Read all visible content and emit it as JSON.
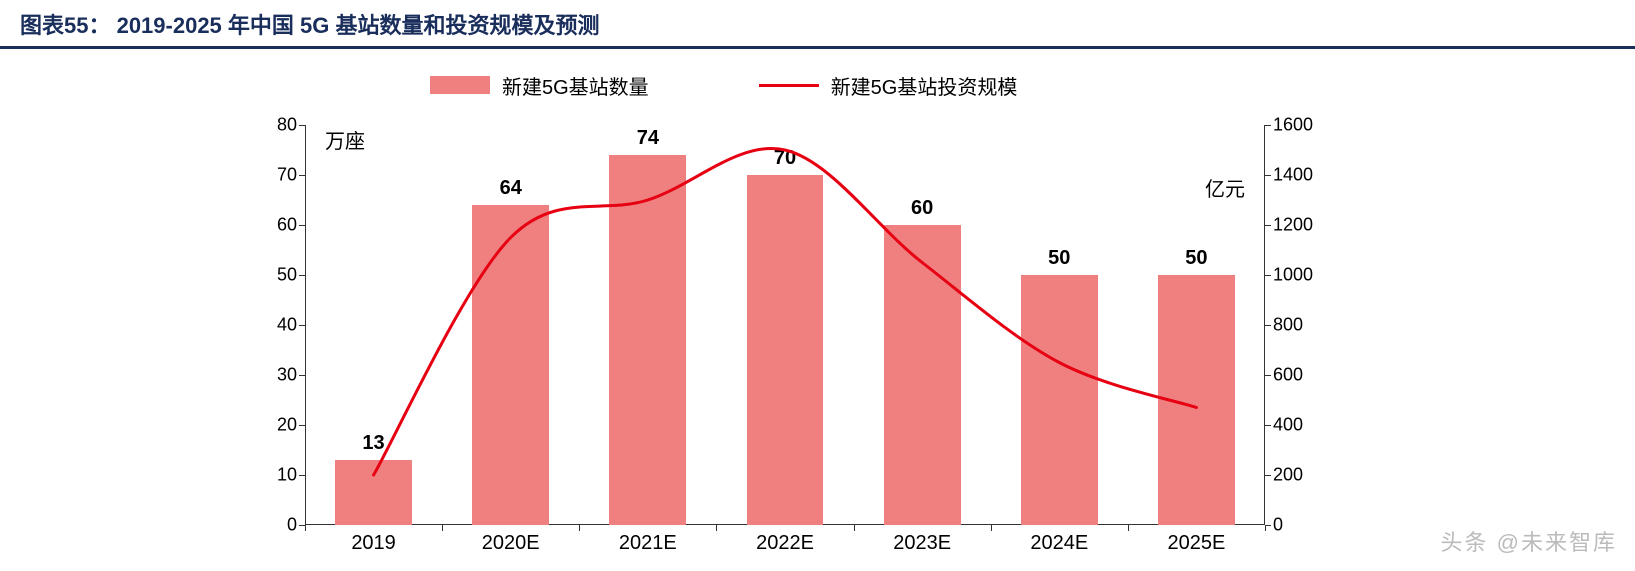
{
  "title": "图表55：   2019-2025 年中国 5G 基站数量和投资规模及预测",
  "legend": {
    "bar_label": "新建5G基站数量",
    "line_label": "新建5G基站投资规模"
  },
  "chart": {
    "type": "bar+line",
    "categories": [
      "2019",
      "2020E",
      "2021E",
      "2022E",
      "2023E",
      "2024E",
      "2025E"
    ],
    "bar_values": [
      13,
      64,
      74,
      70,
      60,
      50,
      50
    ],
    "line_values": [
      200,
      1150,
      1300,
      1500,
      1050,
      650,
      470
    ],
    "unit_left": "万座",
    "unit_right": "亿元",
    "y_left": {
      "min": 0,
      "max": 80,
      "step": 10
    },
    "y_right": {
      "min": 0,
      "max": 1600,
      "step": 200
    },
    "bar_color": "#f08080",
    "line_color": "#e60012",
    "line_width": 3,
    "bar_width_ratio": 0.56,
    "background_color": "#ffffff",
    "axis_color": "#333333",
    "label_fontsize": 20,
    "tick_fontsize": 18,
    "title_color": "#1a2e5c",
    "title_border_color": "#1a2e5c"
  },
  "watermark": "头条 @未来智库"
}
